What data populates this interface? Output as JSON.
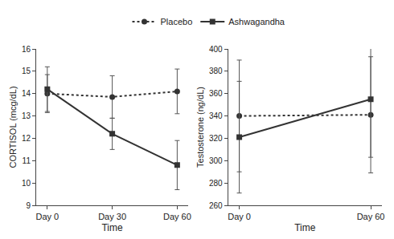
{
  "chart_data": [
    {
      "type": "line",
      "x_label": "Time",
      "y_label": "CORTISOL (mcg/dL)",
      "categories": [
        "Day 0",
        "Day 30",
        "Day 60"
      ],
      "series": [
        {
          "name": "Placebo",
          "color": "#333333",
          "marker": "circle",
          "line_style": "dot",
          "values": [
            14.0,
            13.85,
            14.1
          ],
          "errors": [
            0.85,
            0.95,
            1.0
          ]
        },
        {
          "name": "Ashwagandha",
          "color": "#333333",
          "marker": "square",
          "line_style": "solid",
          "values": [
            14.2,
            12.2,
            10.8
          ],
          "errors": [
            1.0,
            0.7,
            1.1
          ]
        }
      ],
      "ylim": [
        9,
        16
      ],
      "yticks": [
        9,
        10,
        11,
        12,
        13,
        14,
        15,
        16
      ],
      "grid": false,
      "legend": "top"
    },
    {
      "type": "line",
      "x_label": "Time",
      "y_label": "Testosterone (ng/dL)",
      "categories": [
        "Day 0",
        "Day 60"
      ],
      "series": [
        {
          "name": "Placebo",
          "color": "#333333",
          "marker": "circle",
          "line_style": "dot",
          "values": [
            340,
            341
          ],
          "errors": [
            50,
            52
          ]
        },
        {
          "name": "Ashwagandha",
          "color": "#333333",
          "marker": "square",
          "line_style": "solid",
          "values": [
            321,
            355
          ],
          "errors": [
            50,
            52
          ]
        }
      ],
      "ylim": [
        260,
        400
      ],
      "yticks": [
        260,
        280,
        300,
        320,
        340,
        360,
        380,
        400
      ],
      "grid": false
    }
  ]
}
